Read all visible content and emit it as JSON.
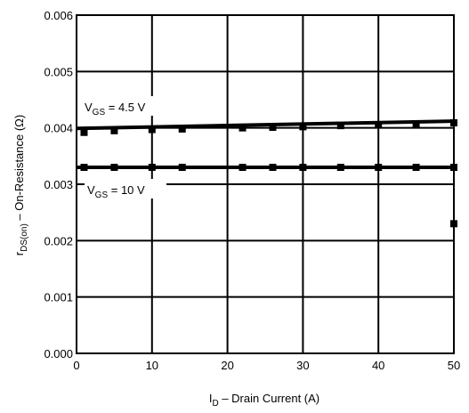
{
  "chart_data": {
    "type": "line",
    "xlabel": {
      "main": "I",
      "sub": "D",
      "rest": " – Drain Current (A)"
    },
    "ylabel": {
      "main": "r",
      "sub": "DS(on)",
      "rest": " – On-Resistance (Ω)"
    },
    "xlim": [
      0,
      50
    ],
    "ylim": [
      0.0,
      0.006
    ],
    "x_ticks": [
      "0",
      "10",
      "20",
      "30",
      "40",
      "50"
    ],
    "y_ticks": [
      "0.000",
      "0.001",
      "0.002",
      "0.003",
      "0.004",
      "0.005",
      "0.006"
    ],
    "grid": true,
    "series": [
      {
        "name": {
          "main": "V",
          "sub": "GS",
          "rest": " = 4.5 V"
        },
        "line": {
          "x": [
            0,
            50
          ],
          "y": [
            0.00399,
            0.00412
          ]
        },
        "points": {
          "x": [
            1,
            5,
            10,
            14,
            22,
            26,
            30,
            35,
            40,
            45,
            50
          ],
          "y": [
            0.00392,
            0.00395,
            0.00397,
            0.00398,
            0.004,
            0.00401,
            0.00402,
            0.00404,
            0.00405,
            0.00407,
            0.00409
          ]
        }
      },
      {
        "name": {
          "main": "V",
          "sub": "GS",
          "rest": " = 10 V"
        },
        "line": {
          "x": [
            0,
            50
          ],
          "y": [
            0.0033,
            0.0033
          ]
        },
        "points": {
          "x": [
            1,
            5,
            10,
            14,
            22,
            26,
            30,
            35,
            40,
            45,
            50,
            50
          ],
          "y": [
            0.0033,
            0.0033,
            0.0033,
            0.0033,
            0.0033,
            0.0033,
            0.0033,
            0.0033,
            0.0033,
            0.0033,
            0.0033,
            0.0023
          ]
        }
      }
    ]
  }
}
